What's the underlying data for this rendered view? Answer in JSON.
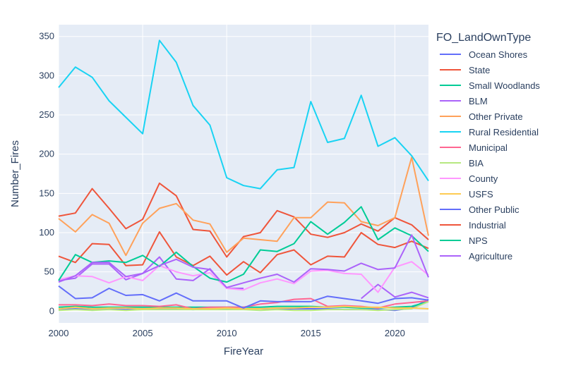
{
  "chart_data": {
    "type": "line",
    "xlabel": "FireYear",
    "ylabel": "Number_Fires",
    "legend_title": "FO_LandOwnType",
    "legend_position": "right",
    "grid": true,
    "xlim": [
      2000,
      2022
    ],
    "ylim": [
      -15,
      365
    ],
    "x_ticks": [
      2000,
      2005,
      2010,
      2015,
      2020
    ],
    "y_ticks": [
      0,
      50,
      100,
      150,
      200,
      250,
      300,
      350
    ],
    "x": [
      2000,
      2001,
      2002,
      2003,
      2004,
      2005,
      2006,
      2007,
      2008,
      2009,
      2010,
      2011,
      2012,
      2013,
      2014,
      2015,
      2016,
      2017,
      2018,
      2019,
      2020,
      2021,
      2022
    ],
    "series": [
      {
        "name": "Ocean Shores",
        "color": "#636efa",
        "values": [
          2,
          3,
          2,
          3,
          2,
          3,
          3,
          3,
          2,
          3,
          3,
          3,
          3,
          3,
          3,
          3,
          3,
          2,
          2,
          2,
          1,
          4,
          15
        ]
      },
      {
        "name": "State",
        "color": "#EF553B",
        "values": [
          121,
          125,
          156,
          131,
          105,
          117,
          163,
          147,
          104,
          102,
          69,
          95,
          100,
          128,
          120,
          98,
          94,
          100,
          111,
          102,
          119,
          110,
          91
        ]
      },
      {
        "name": "Small Woodlands",
        "color": "#00cc96",
        "values": [
          5,
          6,
          5,
          5,
          5,
          5,
          5,
          5,
          5,
          5,
          5,
          5,
          5,
          6,
          6,
          6,
          5,
          5,
          4,
          4,
          5,
          6,
          12
        ]
      },
      {
        "name": "BLM",
        "color": "#ab63fa",
        "values": [
          39,
          42,
          60,
          60,
          40,
          48,
          69,
          41,
          39,
          54,
          29,
          29,
          null,
          null,
          null,
          null,
          null,
          null,
          16,
          34,
          18,
          24,
          17
        ]
      },
      {
        "name": "Other Private",
        "color": "#FFA15A",
        "values": [
          118,
          101,
          123,
          112,
          71,
          112,
          131,
          137,
          116,
          111,
          75,
          93,
          91,
          89,
          119,
          119,
          139,
          138,
          114,
          109,
          119,
          196,
          96
        ]
      },
      {
        "name": "Rural Residential",
        "color": "#19d3f3",
        "values": [
          285,
          311,
          298,
          268,
          247,
          226,
          345,
          317,
          262,
          237,
          170,
          160,
          156,
          180,
          183,
          267,
          215,
          220,
          275,
          210,
          221,
          198,
          166
        ]
      },
      {
        "name": "Municipal",
        "color": "#FF6692",
        "values": [
          8,
          8,
          7,
          9,
          7,
          7,
          6,
          8,
          3,
          5,
          5,
          5,
          9,
          11,
          15,
          16,
          6,
          7,
          6,
          4,
          9,
          11,
          13
        ]
      },
      {
        "name": "BIA",
        "color": "#B6E880",
        "values": [
          1,
          2,
          1,
          2,
          1,
          2,
          2,
          2,
          2,
          2,
          2,
          2,
          1,
          2,
          1,
          1,
          2,
          2,
          2,
          1,
          2,
          3,
          12
        ]
      },
      {
        "name": "County",
        "color": "#FF97FF",
        "values": [
          40,
          45,
          44,
          36,
          44,
          39,
          58,
          50,
          45,
          49,
          29,
          27,
          36,
          41,
          35,
          51,
          52,
          48,
          47,
          24,
          56,
          63,
          46
        ]
      },
      {
        "name": "USFS",
        "color": "#FECB52",
        "values": [
          3,
          5,
          3,
          4,
          4,
          3,
          4,
          4,
          3,
          3,
          4,
          3,
          3,
          4,
          4,
          5,
          5,
          6,
          5,
          5,
          4,
          4,
          3
        ]
      },
      {
        "name": "Other Public",
        "color": "#636efa",
        "values": [
          32,
          16,
          17,
          29,
          20,
          21,
          13,
          23,
          13,
          13,
          13,
          4,
          13,
          12,
          12,
          12,
          19,
          16,
          13,
          10,
          16,
          17,
          14
        ]
      },
      {
        "name": "Industrial",
        "color": "#EF553B",
        "values": [
          70,
          62,
          86,
          85,
          58,
          59,
          101,
          69,
          58,
          70,
          46,
          63,
          49,
          72,
          78,
          59,
          70,
          69,
          100,
          85,
          81,
          89,
          80
        ]
      },
      {
        "name": "NPS",
        "color": "#00cc96",
        "values": [
          39,
          72,
          62,
          64,
          62,
          71,
          57,
          75,
          57,
          42,
          37,
          47,
          78,
          76,
          86,
          114,
          98,
          113,
          133,
          91,
          106,
          96,
          76
        ]
      },
      {
        "name": "Agriculture",
        "color": "#ab63fa",
        "values": [
          37,
          45,
          62,
          62,
          44,
          48,
          58,
          66,
          56,
          53,
          30,
          36,
          42,
          47,
          37,
          54,
          53,
          51,
          61,
          53,
          55,
          97,
          43
        ]
      }
    ]
  }
}
